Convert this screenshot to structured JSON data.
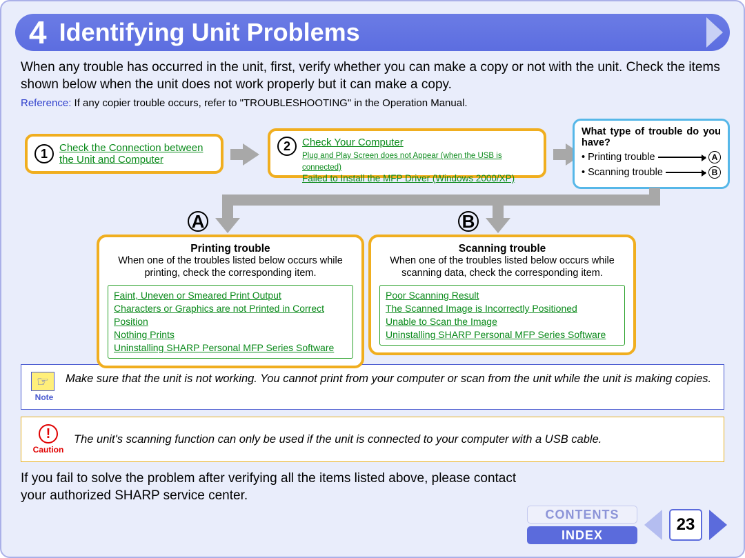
{
  "colors": {
    "page_bg": "#e9edfb",
    "header_bg": "#5c6de0",
    "accent_orange": "#f0ae1f",
    "accent_blue": "#56b7e8",
    "link_green": "#0a8a1a",
    "note_border": "#4a5ad0",
    "caution_red": "#e00000",
    "arrow_grey": "#a8a8a8"
  },
  "header": {
    "number": "4",
    "title": "Identifying Unit Problems"
  },
  "intro": "When any trouble has occurred in the unit, first, verify whether you can make a copy or not with the unit. Check the items shown below when the unit does not work properly but it can make a copy.",
  "reference": {
    "label": "Reference:",
    "text": " If any copier trouble occurs, refer to \"TROUBLESHOOTING\" in the Operation Manual."
  },
  "step1": {
    "num": "1",
    "link": "Check the Connection between the Unit and Computer"
  },
  "step2": {
    "num": "2",
    "link_top": "Check Your Computer",
    "link_mid": "Plug and Play Screen does not Appear (when the USB is connected)",
    "link_bot": "Failed to Install the MFP Driver (Windows 2000/XP)"
  },
  "right": {
    "question": "What type of trouble do you have?",
    "row1_label": "Printing trouble",
    "row1_target": "A",
    "row2_label": "Scanning trouble",
    "row2_target": "B"
  },
  "labelA": "A",
  "labelB": "B",
  "boxA": {
    "title": "Printing trouble",
    "sub": "When one of the troubles listed below occurs while printing, check the corresponding item.",
    "links": [
      "Faint, Uneven or Smeared Print Output",
      "Characters or Graphics are not Printed in Correct Position",
      "Nothing Prints",
      "Uninstalling SHARP Personal MFP Series Software"
    ]
  },
  "boxB": {
    "title": "Scanning trouble",
    "sub": "When one of the troubles listed below occurs while scanning data, check the corresponding item.",
    "links": [
      "Poor Scanning Result",
      "The Scanned Image is Incorrectly Positioned",
      "Unable to Scan the Image",
      "Uninstalling SHARP Personal MFP Series Software"
    ]
  },
  "note": {
    "label": "Note",
    "text": "Make sure that the unit is not working. You cannot print from your computer or scan from the unit while the unit is making copies."
  },
  "caution": {
    "label": "Caution",
    "text": "The unit's scanning function can only be used if the unit is connected to your computer with a USB cable."
  },
  "bottom": "If you fail to solve the problem after verifying all the items listed above, please contact your authorized SHARP service center.",
  "footer": {
    "contents": "CONTENTS",
    "index": "INDEX",
    "page": "23"
  }
}
